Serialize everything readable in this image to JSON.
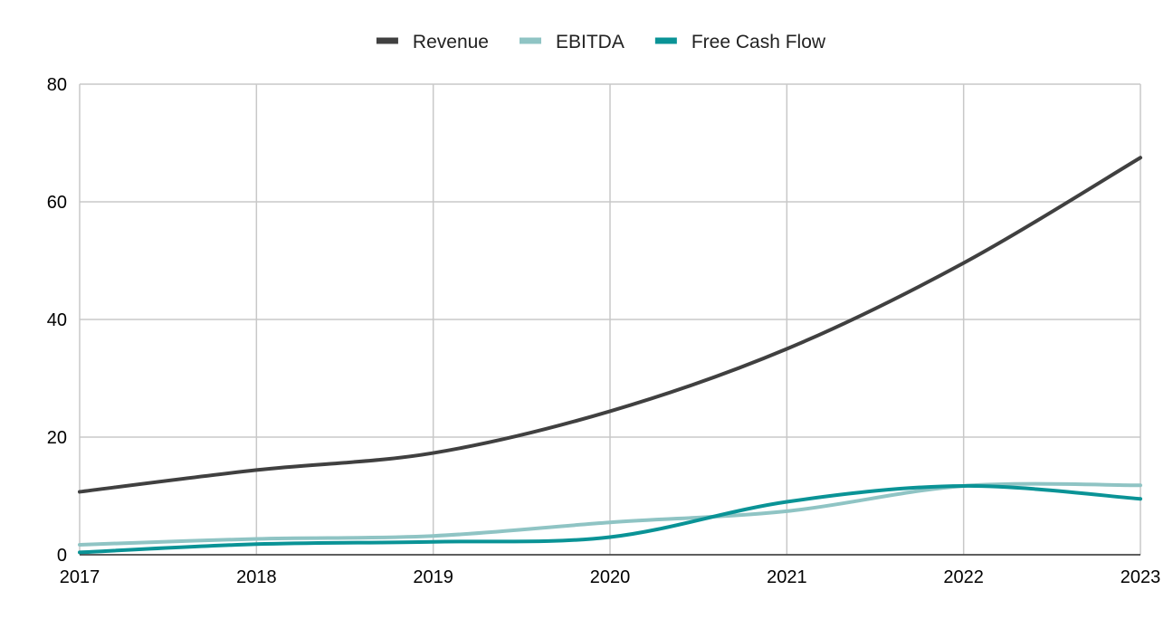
{
  "chart_data": {
    "type": "line",
    "title": "",
    "xlabel": "",
    "ylabel": "",
    "x": [
      "2017",
      "2018",
      "2019",
      "2020",
      "2021",
      "2022",
      "2023"
    ],
    "xlim": [
      2017,
      2023
    ],
    "ylim": [
      0,
      80
    ],
    "yticks": [
      0,
      20,
      40,
      60,
      80
    ],
    "grid": true,
    "legend": "top-center",
    "series": [
      {
        "name": "Revenue",
        "color": "#404040",
        "values": [
          10.7,
          14.4,
          17.3,
          24.4,
          35.0,
          49.6,
          67.5
        ]
      },
      {
        "name": "EBITDA",
        "color": "#8fc4c4",
        "values": [
          1.7,
          2.7,
          3.2,
          5.5,
          7.4,
          11.7,
          11.8
        ]
      },
      {
        "name": "Free Cash Flow",
        "color": "#0a9396",
        "values": [
          0.4,
          1.8,
          2.2,
          3.0,
          9.0,
          11.7,
          9.5
        ]
      }
    ]
  }
}
